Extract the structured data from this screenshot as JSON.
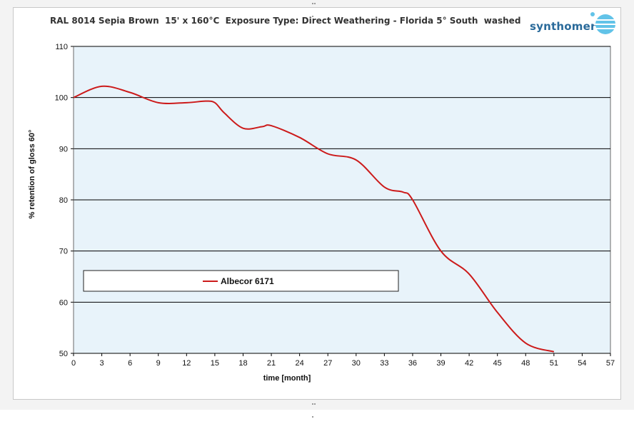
{
  "colors": {
    "plot_background": "#e8f3fa",
    "series_line": "#cc1a1a",
    "grid": "#000000",
    "logo_blue": "#2a6a9a",
    "logo_sphere": "#62c3e8"
  },
  "logo": {
    "text": "synthomer",
    "icon": "sphere-logo-icon"
  },
  "chart_data": {
    "type": "line",
    "title": "RAL 8014 Sepia Brown  15' x 160°C  Exposure Type: Direct Weathering - Florida 5° South  washed",
    "xlabel": "time [month]",
    "ylabel": "% retention of gloss 60°",
    "xlim": [
      0,
      57
    ],
    "ylim": [
      50,
      110
    ],
    "x_ticks": [
      "0",
      "3",
      "6",
      "9",
      "12",
      "15",
      "18",
      "21",
      "24",
      "27",
      "30",
      "33",
      "36",
      "39",
      "42",
      "45",
      "48",
      "51",
      "54",
      "57"
    ],
    "y_ticks": [
      "50",
      "60",
      "70",
      "80",
      "90",
      "100",
      "110"
    ],
    "grid": "horizontal",
    "legend_position": "lower-left inside plot",
    "series": [
      {
        "name": "Albecor 6171",
        "x": [
          0,
          3,
          6,
          9,
          12,
          14,
          15,
          16,
          18,
          20,
          21,
          24,
          27,
          30,
          33,
          35,
          36,
          39,
          42,
          45,
          48,
          51
        ],
        "y": [
          100,
          102.2,
          101,
          99,
          99,
          99.3,
          99,
          97,
          94,
          94.3,
          94.5,
          92.2,
          89,
          87.8,
          82.5,
          81.5,
          80,
          70,
          65.5,
          58,
          52,
          50.3
        ]
      }
    ]
  }
}
